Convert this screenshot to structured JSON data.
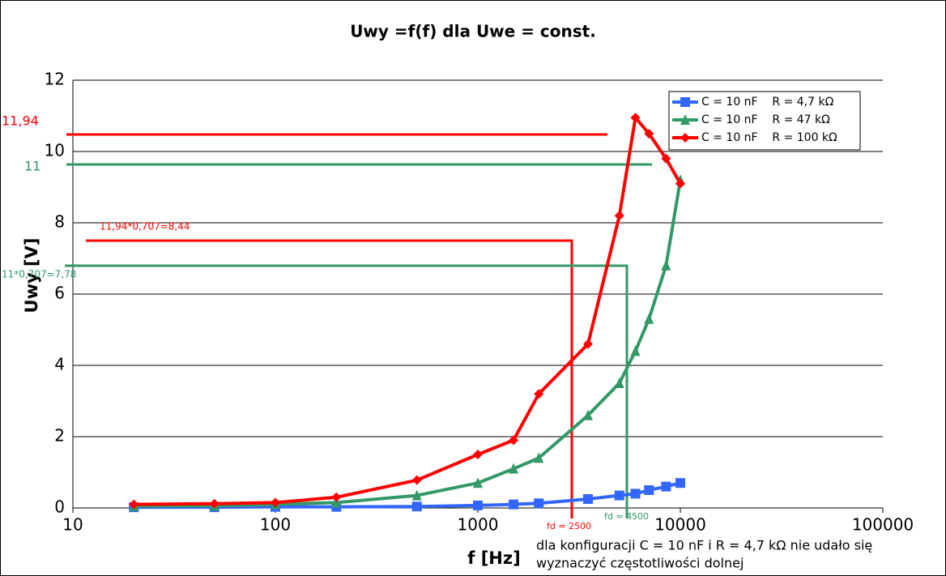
{
  "chart_data": {
    "type": "line",
    "title": "Uwy =f(f) dla Uwe = const.",
    "x_label": "f [Hz]",
    "y_label": "Uwy [V]",
    "xscale": "log",
    "xlim": [
      10,
      100000
    ],
    "xticks": [
      10,
      100,
      1000,
      10000,
      100000
    ],
    "ylim": [
      0,
      12
    ],
    "yticks": [
      0,
      2,
      4,
      6,
      8,
      10,
      12
    ],
    "grid": true,
    "legend": "upper right",
    "series": [
      {
        "name": "C = 10 nF    R = 4,7 kΩ",
        "color": "#3366ff",
        "marker": "square",
        "x": [
          20,
          50,
          100,
          200,
          500,
          1000,
          1500,
          2000,
          3500,
          5000,
          6000,
          7000,
          8500,
          10000
        ],
        "values": [
          0.02,
          0.02,
          0.03,
          0.03,
          0.04,
          0.07,
          0.1,
          0.13,
          0.25,
          0.35,
          0.4,
          0.5,
          0.6,
          0.7
        ]
      },
      {
        "name": "C = 10 nF    R = 47 kΩ",
        "color": "#339966",
        "marker": "triangle",
        "x": [
          20,
          50,
          100,
          200,
          500,
          1000,
          1500,
          2000,
          3500,
          5000,
          6000,
          7000,
          8500,
          10000
        ],
        "values": [
          0.05,
          0.06,
          0.1,
          0.15,
          0.35,
          0.7,
          1.1,
          1.4,
          2.6,
          3.5,
          4.4,
          5.3,
          6.8,
          9.2
        ]
      },
      {
        "name": "C = 10 nF    R = 100 kΩ",
        "color": "#ff0000",
        "marker": "diamond",
        "x": [
          20,
          50,
          100,
          200,
          500,
          1000,
          1500,
          2000,
          3500,
          5000,
          6000,
          7000,
          8500,
          10000
        ],
        "values": [
          0.1,
          0.12,
          0.15,
          0.3,
          0.78,
          1.5,
          1.9,
          3.2,
          4.6,
          8.2,
          10.95,
          10.5,
          9.8,
          9.1
        ]
      }
    ],
    "annotations": [
      "11,94",
      "11",
      "11,94*0,707=8,44",
      "11*0,707=7,78",
      "fd = 2500",
      "fd = 4500"
    ],
    "note": [
      "dla konfiguracji C = 10 nF i R = 4,7 kΩ nie udało się",
      "wyznaczyć częstotliwości dolnej"
    ]
  }
}
